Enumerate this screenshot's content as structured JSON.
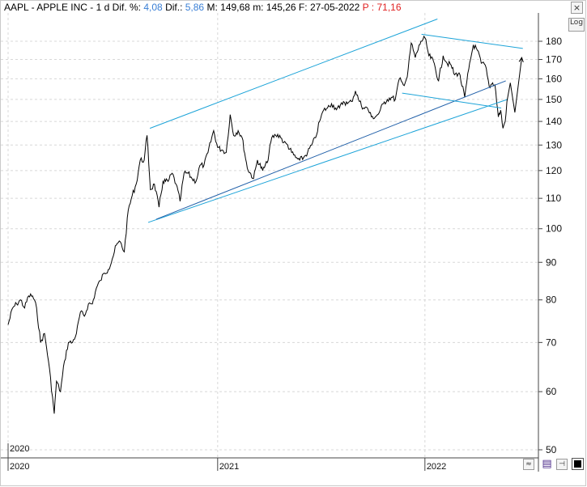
{
  "header": {
    "symbol": "AAPL",
    "name": "APPLE INC",
    "period": "1 d",
    "dif_pct_label": "Dif. %:",
    "dif_pct_value": "4,08",
    "dif_label": "Dif.:",
    "dif_value": "5,86",
    "max_label": "M:",
    "max_value": "149,68",
    "min_label": "m:",
    "min_value": "145,26",
    "date_label": "F:",
    "date_value": "27-05-2022",
    "p_label": "P :",
    "p_value": "71,16"
  },
  "colors": {
    "value_blue": "#3a7fd5",
    "p_red": "#e02020",
    "trendline": "#1ba3d8",
    "dark_trendline": "#1f5fa8",
    "price": "#000000",
    "grid": "#d8d8d8"
  },
  "controls": {
    "log_label": "Log",
    "close_symbol": "×",
    "scroll_symbol": "≈",
    "save_symbol": "▤",
    "pin_symbol": "⊣"
  },
  "icons": {
    "close": "close-icon",
    "log": "log-scale-icon",
    "scroll": "scroll-icon",
    "save": "save-icon",
    "pin": "pin-icon",
    "color": "color-swatch-icon"
  },
  "chart_data": {
    "type": "line",
    "title": "AAPL - APPLE INC - 1 d",
    "y_scale": "log",
    "ylim": [
      49,
      195
    ],
    "y_ticks": [
      50,
      60,
      70,
      80,
      90,
      100,
      110,
      120,
      130,
      140,
      150,
      160,
      170,
      180
    ],
    "x_ticks": [
      "2020",
      "2020",
      "2021",
      "2022"
    ],
    "xlim": [
      "2020-01-02",
      "2022-06-30"
    ],
    "grid": true,
    "series": [
      {
        "points": [
          [
            "2020-01-02",
            74
          ],
          [
            "2020-01-10",
            78
          ],
          [
            "2020-01-17",
            79
          ],
          [
            "2020-01-24",
            80
          ],
          [
            "2020-01-31",
            78
          ],
          [
            "2020-02-07",
            81
          ],
          [
            "2020-02-14",
            81
          ],
          [
            "2020-02-21",
            78
          ],
          [
            "2020-02-28",
            70
          ],
          [
            "2020-03-06",
            72
          ],
          [
            "2020-03-13",
            66
          ],
          [
            "2020-03-20",
            59
          ],
          [
            "2020-03-23",
            56
          ],
          [
            "2020-03-27",
            62
          ],
          [
            "2020-04-03",
            60
          ],
          [
            "2020-04-10",
            66
          ],
          [
            "2020-04-17",
            70
          ],
          [
            "2020-04-24",
            70
          ],
          [
            "2020-05-01",
            72
          ],
          [
            "2020-05-08",
            77
          ],
          [
            "2020-05-15",
            76
          ],
          [
            "2020-05-22",
            79
          ],
          [
            "2020-05-29",
            79
          ],
          [
            "2020-06-05",
            83
          ],
          [
            "2020-06-12",
            85
          ],
          [
            "2020-06-19",
            87
          ],
          [
            "2020-06-26",
            88
          ],
          [
            "2020-07-03",
            91
          ],
          [
            "2020-07-10",
            95
          ],
          [
            "2020-07-17",
            96
          ],
          [
            "2020-07-24",
            93
          ],
          [
            "2020-07-31",
            106
          ],
          [
            "2020-08-07",
            111
          ],
          [
            "2020-08-14",
            115
          ],
          [
            "2020-08-21",
            124
          ],
          [
            "2020-08-28",
            124
          ],
          [
            "2020-09-02",
            134
          ],
          [
            "2020-09-08",
            113
          ],
          [
            "2020-09-15",
            115
          ],
          [
            "2020-09-23",
            107
          ],
          [
            "2020-09-30",
            116
          ],
          [
            "2020-10-09",
            116
          ],
          [
            "2020-10-16",
            119
          ],
          [
            "2020-10-23",
            115
          ],
          [
            "2020-10-30",
            109
          ],
          [
            "2020-11-06",
            119
          ],
          [
            "2020-11-13",
            119
          ],
          [
            "2020-11-20",
            117
          ],
          [
            "2020-11-27",
            116
          ],
          [
            "2020-12-04",
            122
          ],
          [
            "2020-12-11",
            122
          ],
          [
            "2020-12-18",
            127
          ],
          [
            "2020-12-28",
            136
          ],
          [
            "2021-01-04",
            129
          ],
          [
            "2021-01-12",
            128
          ],
          [
            "2021-01-19",
            127
          ],
          [
            "2021-01-26",
            143
          ],
          [
            "2021-02-01",
            134
          ],
          [
            "2021-02-09",
            136
          ],
          [
            "2021-02-16",
            133
          ],
          [
            "2021-02-25",
            121
          ],
          [
            "2021-03-08",
            117
          ],
          [
            "2021-03-15",
            124
          ],
          [
            "2021-03-24",
            120
          ],
          [
            "2021-04-01",
            123
          ],
          [
            "2021-04-09",
            133
          ],
          [
            "2021-04-16",
            134
          ],
          [
            "2021-04-23",
            134
          ],
          [
            "2021-04-30",
            131
          ],
          [
            "2021-05-07",
            130
          ],
          [
            "2021-05-14",
            127
          ],
          [
            "2021-05-21",
            125
          ],
          [
            "2021-05-28",
            124
          ],
          [
            "2021-06-04",
            125
          ],
          [
            "2021-06-11",
            127
          ],
          [
            "2021-06-18",
            130
          ],
          [
            "2021-06-25",
            133
          ],
          [
            "2021-07-02",
            140
          ],
          [
            "2021-07-09",
            145
          ],
          [
            "2021-07-16",
            146
          ],
          [
            "2021-07-23",
            148
          ],
          [
            "2021-07-30",
            146
          ],
          [
            "2021-08-06",
            146
          ],
          [
            "2021-08-13",
            149
          ],
          [
            "2021-08-20",
            148
          ],
          [
            "2021-08-27",
            149
          ],
          [
            "2021-09-03",
            154
          ],
          [
            "2021-09-10",
            149
          ],
          [
            "2021-09-17",
            146
          ],
          [
            "2021-09-24",
            146
          ],
          [
            "2021-10-01",
            142
          ],
          [
            "2021-10-08",
            142
          ],
          [
            "2021-10-15",
            144
          ],
          [
            "2021-10-22",
            148
          ],
          [
            "2021-10-29",
            150
          ],
          [
            "2021-11-05",
            151
          ],
          [
            "2021-11-12",
            150
          ],
          [
            "2021-11-19",
            160
          ],
          [
            "2021-11-26",
            157
          ],
          [
            "2021-12-03",
            161
          ],
          [
            "2021-12-10",
            179
          ],
          [
            "2021-12-17",
            171
          ],
          [
            "2021-12-27",
            180
          ],
          [
            "2022-01-03",
            182
          ],
          [
            "2022-01-10",
            172
          ],
          [
            "2022-01-18",
            169
          ],
          [
            "2022-01-27",
            159
          ],
          [
            "2022-02-04",
            172
          ],
          [
            "2022-02-11",
            168
          ],
          [
            "2022-02-18",
            167
          ],
          [
            "2022-02-24",
            162
          ],
          [
            "2022-03-04",
            163
          ],
          [
            "2022-03-14",
            151
          ],
          [
            "2022-03-21",
            165
          ],
          [
            "2022-03-29",
            178
          ],
          [
            "2022-04-05",
            175
          ],
          [
            "2022-04-12",
            168
          ],
          [
            "2022-04-19",
            167
          ],
          [
            "2022-04-26",
            156
          ],
          [
            "2022-05-02",
            158
          ],
          [
            "2022-05-06",
            157
          ],
          [
            "2022-05-12",
            142
          ],
          [
            "2022-05-16",
            145
          ],
          [
            "2022-05-20",
            137
          ],
          [
            "2022-05-24",
            140
          ],
          [
            "2022-05-27",
            149
          ]
        ]
      }
    ],
    "annotations": [
      {
        "type": "trendline",
        "from": [
          "2020-09-07",
          137
        ],
        "to": [
          "2022-01-25",
          193
        ]
      },
      {
        "type": "trendline",
        "from": [
          "2020-09-04",
          102
        ],
        "to": [
          "2022-05-28",
          150
        ]
      },
      {
        "type": "trendline",
        "from": [
          "2020-09-18",
          103
        ],
        "to": [
          "2022-05-25",
          159
        ]
      },
      {
        "type": "trendline",
        "from": [
          "2021-12-28",
          184
        ],
        "to": [
          "2022-06-24",
          176
        ]
      },
      {
        "type": "trendline",
        "from": [
          "2021-11-24",
          153
        ],
        "to": [
          "2022-05-17",
          146
        ]
      },
      {
        "type": "projection",
        "points": [
          [
            "2022-05-27",
            149
          ],
          [
            "2022-06-02",
            158
          ],
          [
            "2022-06-10",
            144
          ],
          [
            "2022-06-22",
            171
          ]
        ]
      }
    ]
  }
}
